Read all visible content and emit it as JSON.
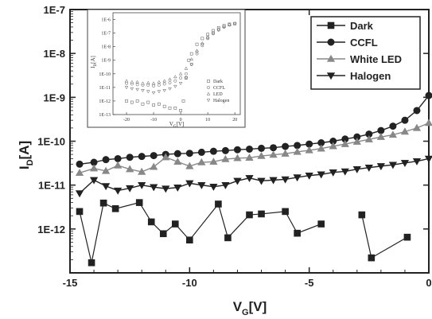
{
  "chart_data": [
    {
      "type": "line",
      "xlabel": "V",
      "xlabel_sub": "G",
      "xlabel_unit": "[V]",
      "ylabel": "I",
      "ylabel_sub": "D",
      "ylabel_unit": "[A]",
      "xlim": [
        -15,
        0
      ],
      "ylim_log10": [
        -13,
        -7
      ],
      "y_scale": "log",
      "x_ticks": [
        -15,
        -10,
        -5,
        0
      ],
      "x_tick_labels": [
        "-15",
        "-10",
        "-5",
        "0"
      ],
      "y_ticks_log10": [
        -12,
        -11,
        -10,
        -9,
        -8,
        -7
      ],
      "y_tick_labels": [
        "1E-12",
        "1E-11",
        "1E-10",
        "1E-9",
        "1E-8",
        "1E-7"
      ],
      "legend_position": "top-right",
      "series": [
        {
          "name": "Dark",
          "marker": "square",
          "color": "#222222",
          "x": [
            -14.6,
            -14.1,
            -13.6,
            -13.1,
            -12.1,
            -11.6,
            -11.1,
            -10.6,
            -10.0,
            -8.8,
            -8.4,
            -7.5,
            -7.0,
            -6.0,
            -5.5,
            -4.5,
            -2.8,
            -2.4,
            -0.9
          ],
          "y": [
            2.5e-12,
            1.7e-13,
            3.9e-12,
            2.9e-12,
            4e-12,
            1.45e-12,
            7.8e-13,
            1.3e-12,
            5.6e-13,
            3.7e-12,
            6.3e-13,
            2.1e-12,
            2.2e-12,
            2.5e-12,
            8e-13,
            1.3e-12,
            2.1e-12,
            2.2e-13,
            6.5e-13
          ],
          "segments": [
            [
              0,
              4
            ],
            [
              4,
              9
            ],
            [
              9,
              11
            ],
            [
              11,
              13
            ],
            [
              13,
              15
            ],
            [
              16,
              18
            ]
          ]
        },
        {
          "name": "CCFL",
          "marker": "circle",
          "color": "#222222",
          "x": [
            -14.6,
            -14.0,
            -13.5,
            -13.0,
            -12.5,
            -12.0,
            -11.5,
            -11.0,
            -10.5,
            -10.0,
            -9.5,
            -9.0,
            -8.5,
            -8.0,
            -7.5,
            -7.0,
            -6.5,
            -6.0,
            -5.5,
            -5.0,
            -4.5,
            -4.0,
            -3.5,
            -3.0,
            -2.5,
            -2.0,
            -1.5,
            -1.0,
            -0.5,
            0.0
          ],
          "y": [
            3e-11,
            3.3e-11,
            3.8e-11,
            4e-11,
            4.3e-11,
            4.5e-11,
            4.7e-11,
            5e-11,
            5.2e-11,
            5.3e-11,
            5.6e-11,
            5.9e-11,
            6.1e-11,
            6.4e-11,
            6.6e-11,
            6.9e-11,
            7.1e-11,
            7.6e-11,
            8e-11,
            8.6e-11,
            9.2e-11,
            1e-10,
            1.12e-10,
            1.25e-10,
            1.45e-10,
            1.75e-10,
            2.2e-10,
            3e-10,
            5e-10,
            1.1e-09
          ]
        },
        {
          "name": "White LED",
          "marker": "triangle-up",
          "color": "#888888",
          "x": [
            -14.6,
            -14.0,
            -13.5,
            -13.0,
            -12.5,
            -12.0,
            -11.5,
            -11.0,
            -10.5,
            -10.0,
            -9.5,
            -9.0,
            -8.5,
            -8.0,
            -7.5,
            -7.0,
            -6.5,
            -6.0,
            -5.5,
            -5.0,
            -4.5,
            -4.0,
            -3.5,
            -3.0,
            -2.5,
            -2.0,
            -1.5,
            -1.0,
            -0.5,
            0.0
          ],
          "y": [
            1.9e-11,
            2.4e-11,
            2.1e-11,
            2.8e-11,
            2.3e-11,
            2e-11,
            2.6e-11,
            4.3e-11,
            3.4e-11,
            2.7e-11,
            3.3e-11,
            3.4e-11,
            3.9e-11,
            4.1e-11,
            4.2e-11,
            4.6e-11,
            4.9e-11,
            5.2e-11,
            5.7e-11,
            6.2e-11,
            6.8e-11,
            7.7e-11,
            8.6e-11,
            9.7e-11,
            1.1e-10,
            1.25e-10,
            1.4e-10,
            1.65e-10,
            2e-10,
            2.6e-10
          ]
        },
        {
          "name": "Halogen",
          "marker": "triangle-down",
          "color": "#222222",
          "x": [
            -14.6,
            -14.0,
            -13.5,
            -13.0,
            -12.5,
            -12.0,
            -11.5,
            -11.0,
            -10.5,
            -10.0,
            -9.5,
            -9.0,
            -8.5,
            -8.0,
            -7.5,
            -7.0,
            -6.5,
            -6.0,
            -5.5,
            -5.0,
            -4.5,
            -4.0,
            -3.5,
            -3.0,
            -2.5,
            -2.0,
            -1.5,
            -1.0,
            -0.5,
            0.0
          ],
          "y": [
            6.5e-12,
            1.3e-11,
            9.5e-12,
            7.5e-12,
            8.5e-12,
            1e-11,
            9e-12,
            8.3e-12,
            8.8e-12,
            1.1e-11,
            1e-11,
            9.2e-12,
            1e-11,
            1.25e-11,
            1.45e-11,
            1.25e-11,
            1.3e-11,
            1.35e-11,
            1.5e-11,
            1.65e-11,
            1.75e-11,
            1.95e-11,
            2.05e-11,
            2.3e-11,
            2.5e-11,
            2.7e-11,
            2.9e-11,
            3.2e-11,
            3.5e-11,
            4e-11
          ]
        }
      ]
    },
    {
      "type": "scatter",
      "xlabel": "V",
      "xlabel_sub": "G",
      "xlabel_unit": "[V]",
      "ylabel": "I",
      "ylabel_sub": "D",
      "ylabel_unit": "[A]",
      "xlim": [
        -25,
        22
      ],
      "ylim_log10": [
        -13,
        -5.5
      ],
      "y_scale": "log",
      "x_ticks": [
        -20,
        -10,
        0,
        10,
        20
      ],
      "x_tick_labels": [
        "-20",
        "-10",
        "0",
        "10",
        "20"
      ],
      "y_ticks_log10": [
        -13,
        -12,
        -11,
        -10,
        -9,
        -8,
        -7,
        -6
      ],
      "y_tick_labels": [
        "1E-13",
        "1E-12",
        "1E-11",
        "1E-10",
        "1E-9",
        "1E-8",
        "1E-7",
        "1E-6"
      ],
      "legend_position": "bottom-right",
      "series": [
        {
          "name": "Dark",
          "marker": "open-square",
          "x": [
            -20,
            -18,
            -16,
            -14,
            -12,
            -10,
            -8,
            -6,
            -4,
            -2,
            0,
            1,
            2,
            3,
            4,
            6,
            8,
            10,
            12,
            14,
            16,
            18,
            20
          ],
          "y": [
            1e-12,
            8e-13,
            1e-12,
            6e-13,
            8e-13,
            5e-13,
            6e-13,
            4e-13,
            3e-13,
            3e-13,
            2e-13,
            1e-12,
            5e-11,
            1e-09,
            3e-09,
            1.5e-08,
            4e-08,
            8e-08,
            1.5e-07,
            2.5e-07,
            3.5e-07,
            4.5e-07,
            5e-07
          ]
        },
        {
          "name": "CCFL",
          "marker": "open-circle",
          "x": [
            -20,
            -18,
            -16,
            -14,
            -12,
            -10,
            -8,
            -6,
            -4,
            -2,
            0,
            2,
            4,
            6,
            8,
            10,
            12,
            14,
            16,
            18,
            20
          ],
          "y": [
            2e-11,
            1.8e-11,
            1.6e-11,
            1.5e-11,
            1.5e-11,
            1.3e-11,
            1.5e-11,
            1.8e-11,
            2.2e-11,
            3e-11,
            5e-11,
            1e-10,
            5e-10,
            3e-09,
            1.2e-08,
            4e-08,
            9e-08,
            1.7e-07,
            2.8e-07,
            4e-07,
            5e-07
          ]
        },
        {
          "name": "LED",
          "marker": "open-triangle-up",
          "x": [
            -20,
            -18,
            -16,
            -14,
            -12,
            -10,
            -8,
            -6,
            -4,
            -2,
            0,
            2,
            4,
            6,
            8,
            10,
            12,
            14,
            16,
            18,
            20
          ],
          "y": [
            3e-11,
            2.5e-11,
            2.5e-11,
            2e-11,
            2.2e-11,
            2e-11,
            2.5e-11,
            3e-11,
            4e-11,
            6e-11,
            1e-10,
            2.5e-10,
            1.2e-09,
            5e-09,
            1.8e-08,
            5e-08,
            1.1e-07,
            2e-07,
            3e-07,
            4e-07,
            5e-07
          ]
        },
        {
          "name": "Halogen",
          "marker": "open-triangle-down",
          "x": [
            -20,
            -18,
            -16,
            -14,
            -12,
            -10,
            -8,
            -6,
            -4,
            -2,
            0,
            2,
            4,
            6,
            8,
            10,
            12,
            14,
            16,
            18,
            20
          ],
          "y": [
            1e-11,
            8e-12,
            7e-12,
            6e-12,
            5e-12,
            4e-12,
            5e-12,
            6e-12,
            8e-12,
            1.2e-11,
            2e-11,
            5e-11,
            5e-10,
            4e-09,
            1.5e-08,
            4.5e-08,
            1e-07,
            1.8e-07,
            3e-07,
            4e-07,
            5e-07
          ]
        }
      ]
    }
  ]
}
